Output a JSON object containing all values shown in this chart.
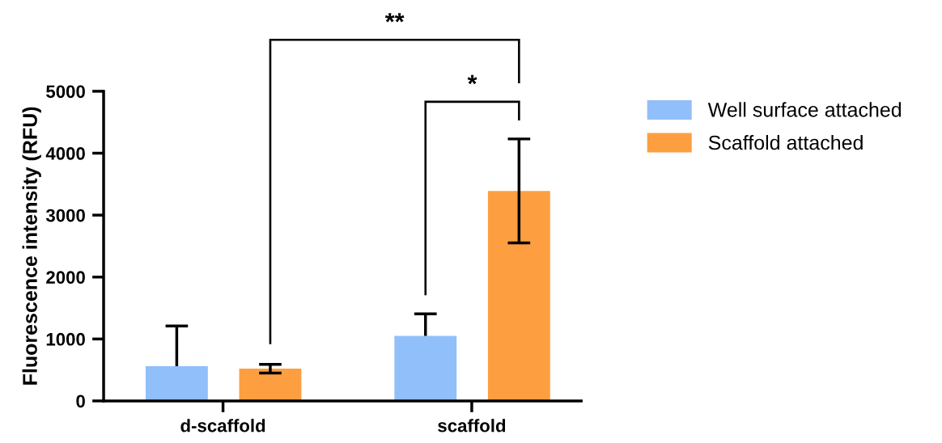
{
  "chart_data": {
    "type": "bar",
    "ylabel": "Fluorescence intensity (RFU)",
    "categories": [
      "d-scaffold",
      "scaffold"
    ],
    "series": [
      {
        "name": "Well surface attached",
        "color": "#91bff9",
        "values": [
          560,
          1050
        ],
        "errors": [
          [
            560,
            1210
          ],
          [
            1050,
            1405
          ]
        ]
      },
      {
        "name": "Scaffold attached",
        "color": "#fd9f40",
        "values": [
          520,
          3390
        ],
        "errors": [
          70,
          840
        ]
      }
    ],
    "ylim": [
      0,
      5000
    ],
    "yticks": [
      0,
      1000,
      2000,
      3000,
      4000,
      5000
    ],
    "grid": false,
    "legend": "right",
    "annotations": [
      "**",
      "*"
    ]
  }
}
